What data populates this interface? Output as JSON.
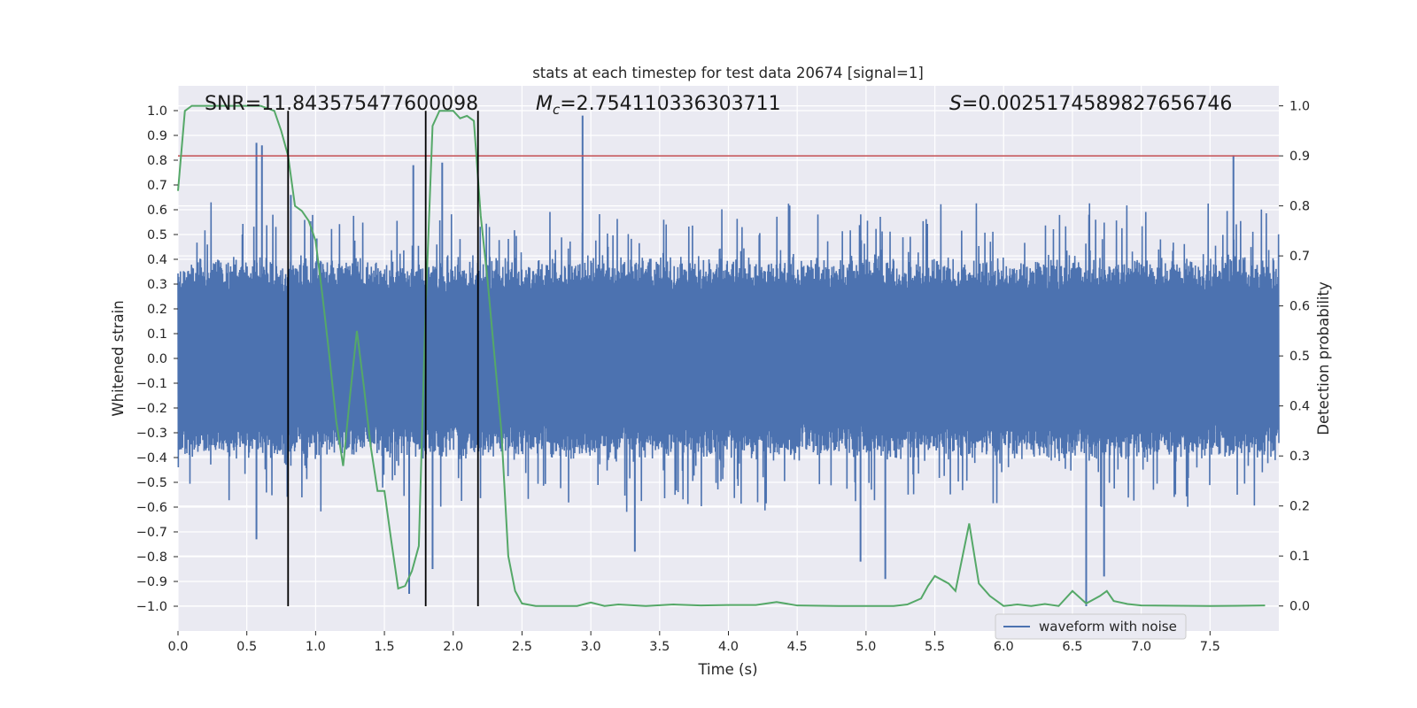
{
  "chart_data": {
    "type": "line",
    "title": "stats at each timestep for test data 20674 [signal=1]",
    "xlabel": "Time (s)",
    "ylabel_left": "Whitened strain",
    "ylabel_right": "Detection probability",
    "xlim": [
      0.0,
      8.0
    ],
    "ylim_left": [
      -1.1,
      1.1
    ],
    "ylim_right": [
      -0.05,
      1.04
    ],
    "x_ticks": [
      "0.0",
      "0.5",
      "1.0",
      "1.5",
      "2.0",
      "2.5",
      "3.0",
      "3.5",
      "4.0",
      "4.5",
      "5.0",
      "5.5",
      "6.0",
      "6.5",
      "7.0",
      "7.5"
    ],
    "x_tick_values": [
      0,
      0.5,
      1,
      1.5,
      2,
      2.5,
      3,
      3.5,
      4,
      4.5,
      5,
      5.5,
      6,
      6.5,
      7,
      7.5
    ],
    "y_left_ticks": [
      "1.0",
      "0.9",
      "0.8",
      "0.7",
      "0.6",
      "0.5",
      "0.4",
      "0.3",
      "0.2",
      "0.1",
      "0.0",
      "−0.1",
      "−0.2",
      "−0.3",
      "−0.4",
      "−0.5",
      "−0.6",
      "−0.7",
      "−0.8",
      "−0.9",
      "−1.0"
    ],
    "y_left_tick_values": [
      1.0,
      0.9,
      0.8,
      0.7,
      0.6,
      0.5,
      0.4,
      0.3,
      0.2,
      0.1,
      0.0,
      -0.1,
      -0.2,
      -0.3,
      -0.4,
      -0.5,
      -0.6,
      -0.7,
      -0.8,
      -0.9,
      -1.0
    ],
    "y_right_ticks": [
      "1.0",
      "0.9",
      "0.8",
      "0.7",
      "0.6",
      "0.5",
      "0.4",
      "0.3",
      "0.2",
      "0.1",
      "0.0"
    ],
    "y_right_tick_values": [
      1.0,
      0.9,
      0.8,
      0.7,
      0.6,
      0.5,
      0.4,
      0.3,
      0.2,
      0.1,
      0.0
    ],
    "annotations": {
      "snr": "SNR=11.843575477600098",
      "mc_symbol": "M",
      "mc_sub": "c",
      "mc_value": "=2.754110336303711",
      "s_symbol": "S",
      "s_value": "=0.002517458982765​6746"
    },
    "threshold": {
      "value": 0.9,
      "axis": "right",
      "color": "#c44e52"
    },
    "vertical_lines": {
      "x": [
        0.8,
        1.8,
        2.18
      ],
      "ymin": -1.0,
      "ymax": 0.99,
      "color": "#000000"
    },
    "series": [
      {
        "name": "waveform with noise",
        "axis": "left",
        "color": "#4c72b0",
        "kind": "dense noise",
        "core_amplitude": 0.3,
        "spikes": [
          {
            "x": 0.57,
            "y": 0.87
          },
          {
            "x": 0.61,
            "y": 0.86
          },
          {
            "x": 0.82,
            "y": 0.66
          },
          {
            "x": 1.71,
            "y": 0.78
          },
          {
            "x": 1.92,
            "y": 0.79
          },
          {
            "x": 2.94,
            "y": 0.98
          },
          {
            "x": 7.67,
            "y": 0.82
          },
          {
            "x": 1.68,
            "y": -0.95
          },
          {
            "x": 1.85,
            "y": -0.85
          },
          {
            "x": 6.6,
            "y": -1.0
          },
          {
            "x": 6.73,
            "y": -0.88
          },
          {
            "x": 5.14,
            "y": -0.89
          },
          {
            "x": 4.96,
            "y": -0.82
          },
          {
            "x": 0.57,
            "y": -0.73
          },
          {
            "x": 3.32,
            "y": -0.78
          }
        ]
      },
      {
        "name": "detection probability",
        "axis": "right",
        "color": "#55a868",
        "x": [
          0.0,
          0.05,
          0.1,
          0.2,
          0.3,
          0.4,
          0.5,
          0.6,
          0.7,
          0.75,
          0.8,
          0.85,
          0.9,
          0.95,
          1.0,
          1.05,
          1.1,
          1.15,
          1.2,
          1.25,
          1.3,
          1.35,
          1.4,
          1.45,
          1.5,
          1.55,
          1.6,
          1.65,
          1.7,
          1.75,
          1.8,
          1.85,
          1.9,
          2.0,
          2.05,
          2.1,
          2.15,
          2.2,
          2.25,
          2.3,
          2.35,
          2.4,
          2.45,
          2.5,
          2.6,
          2.8,
          2.9,
          3.0,
          3.1,
          3.2,
          3.4,
          3.6,
          3.8,
          4.0,
          4.2,
          4.35,
          4.5,
          4.8,
          5.0,
          5.2,
          5.3,
          5.4,
          5.45,
          5.5,
          5.6,
          5.65,
          5.75,
          5.82,
          5.9,
          6.0,
          6.1,
          6.2,
          6.3,
          6.4,
          6.5,
          6.6,
          6.7,
          6.75,
          6.8,
          6.9,
          7.0,
          7.5,
          7.9
        ],
        "y": [
          0.83,
          0.99,
          1.0,
          1.0,
          1.0,
          1.0,
          1.0,
          1.0,
          0.99,
          0.95,
          0.9,
          0.8,
          0.79,
          0.77,
          0.73,
          0.62,
          0.5,
          0.37,
          0.28,
          0.42,
          0.55,
          0.44,
          0.32,
          0.23,
          0.23,
          0.13,
          0.035,
          0.04,
          0.07,
          0.12,
          0.6,
          0.96,
          0.99,
          0.99,
          0.975,
          0.98,
          0.97,
          0.78,
          0.65,
          0.5,
          0.35,
          0.1,
          0.03,
          0.005,
          0.0,
          0.0,
          0.0,
          0.007,
          0.0,
          0.003,
          0.0,
          0.003,
          0.001,
          0.002,
          0.002,
          0.008,
          0.001,
          0.0,
          0.0,
          0.0,
          0.003,
          0.015,
          0.04,
          0.06,
          0.045,
          0.03,
          0.165,
          0.045,
          0.02,
          0.0,
          0.003,
          0.0,
          0.004,
          0.0,
          0.03,
          0.005,
          0.02,
          0.03,
          0.01,
          0.004,
          0.001,
          0.0,
          0.001
        ]
      }
    ],
    "legend": {
      "entries": [
        "waveform with noise"
      ],
      "position": "lower-right"
    }
  }
}
